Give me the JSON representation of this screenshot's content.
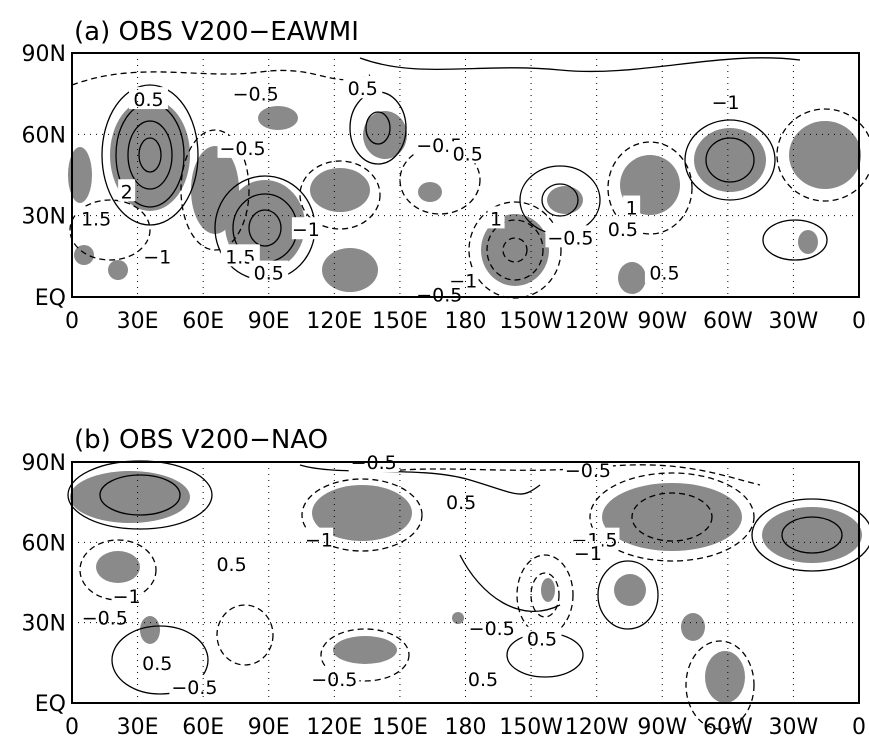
{
  "chart_data": [
    {
      "type": "contour-map",
      "title": "(a)  OBS V200−EAWMI",
      "xticks": [
        "0",
        "30E",
        "60E",
        "90E",
        "120E",
        "150E",
        "180",
        "150W",
        "120W",
        "90W",
        "60W",
        "30W",
        "0"
      ],
      "yticks": [
        "EQ",
        "30N",
        "60N",
        "90N"
      ],
      "xlim": [
        0,
        360
      ],
      "ylim": [
        0,
        90
      ],
      "grid": "dotted",
      "contour_interval": 0.5,
      "shading": "statistically significant regions",
      "contour_labels": [
        {
          "text": "0.5",
          "lon": 35,
          "lat": 73
        },
        {
          "text": "−0.5",
          "lon": 84,
          "lat": 75
        },
        {
          "text": "−0.5",
          "lon": 78,
          "lat": 55
        },
        {
          "text": "0.5",
          "lon": 133,
          "lat": 77
        },
        {
          "text": "−0.5",
          "lon": 168,
          "lat": 56
        },
        {
          "text": "0.5",
          "lon": 181,
          "lat": 53
        },
        {
          "text": "−1",
          "lon": 299,
          "lat": 72
        },
        {
          "text": "2",
          "lon": 25,
          "lat": 39
        },
        {
          "text": "1.5",
          "lon": 11,
          "lat": 29
        },
        {
          "text": "−1",
          "lon": 39,
          "lat": 15
        },
        {
          "text": "1.5",
          "lon": 77,
          "lat": 15
        },
        {
          "text": "0.5",
          "lon": 90,
          "lat": 9
        },
        {
          "text": "−1",
          "lon": 107,
          "lat": 25
        },
        {
          "text": "1",
          "lon": 194,
          "lat": 29
        },
        {
          "text": "−1",
          "lon": 179,
          "lat": 6
        },
        {
          "text": "−0.5",
          "lon": 168,
          "lat": 1
        },
        {
          "text": "−0.5",
          "lon": 228,
          "lat": 22
        },
        {
          "text": "1",
          "lon": 256,
          "lat": 33
        },
        {
          "text": "0.5",
          "lon": 252,
          "lat": 25
        },
        {
          "text": "0.5",
          "lon": 271,
          "lat": 9
        }
      ]
    },
    {
      "type": "contour-map",
      "title": "(b)  OBS V200−NAO",
      "xticks": [
        "0",
        "30E",
        "60E",
        "90E",
        "120E",
        "150E",
        "180",
        "150W",
        "120W",
        "90W",
        "60W",
        "30W",
        "0"
      ],
      "yticks": [
        "EQ",
        "30N",
        "60N",
        "90N"
      ],
      "xlim": [
        0,
        360
      ],
      "ylim": [
        0,
        90
      ],
      "grid": "dotted",
      "contour_interval": 0.5,
      "shading": "statistically significant regions",
      "contour_labels": [
        {
          "text": "−0.5",
          "lon": 138,
          "lat": 90
        },
        {
          "text": "−0.5",
          "lon": 236,
          "lat": 87
        },
        {
          "text": "0.5",
          "lon": 178,
          "lat": 75
        },
        {
          "text": "−1",
          "lon": 113,
          "lat": 61
        },
        {
          "text": "−1.5",
          "lon": 239,
          "lat": 61
        },
        {
          "text": "−1",
          "lon": 236,
          "lat": 56
        },
        {
          "text": "0.5",
          "lon": 73,
          "lat": 52
        },
        {
          "text": "−1",
          "lon": 25,
          "lat": 40
        },
        {
          "text": "−0.5",
          "lon": 15,
          "lat": 32
        },
        {
          "text": "−0.5",
          "lon": 192,
          "lat": 28
        },
        {
          "text": "0.5",
          "lon": 215,
          "lat": 24
        },
        {
          "text": "0.5",
          "lon": 39,
          "lat": 15
        },
        {
          "text": "−0.5",
          "lon": 56,
          "lat": 6
        },
        {
          "text": "−0.5",
          "lon": 120,
          "lat": 9
        },
        {
          "text": "0.5",
          "lon": 188,
          "lat": 9
        }
      ]
    }
  ]
}
